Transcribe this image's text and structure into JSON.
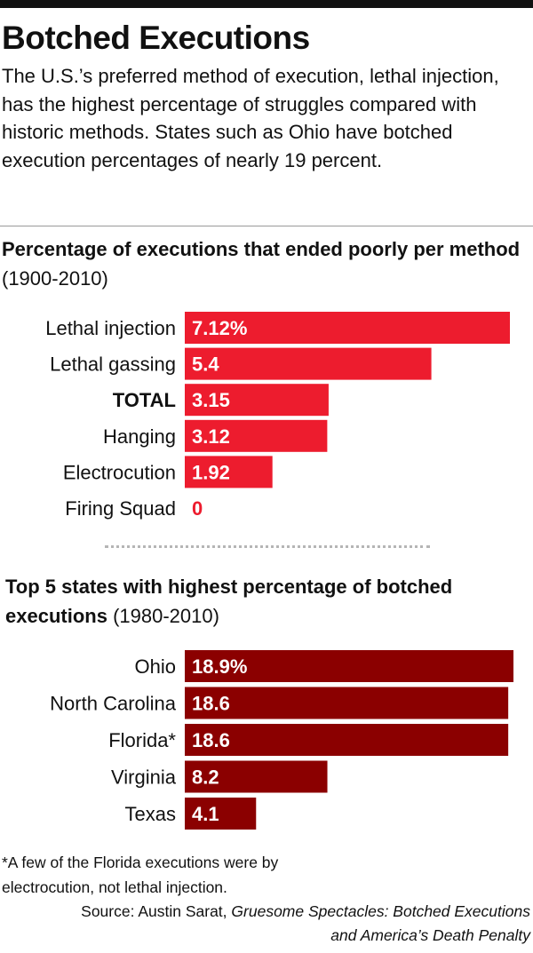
{
  "title": "Botched Executions",
  "dek": "The U.S.’s preferred method of execution, lethal injection, has the highest percentage of struggles compared with historic methods. States such as Ohio have botched execution percentages of nearly 19 percent.",
  "colors": {
    "chart1_bar": "#ed1c2e",
    "chart2_bar": "#8b0000",
    "bar_label": "#ffffff",
    "zero_label": "#ed1c2e"
  },
  "chart_data": [
    {
      "type": "bar",
      "orientation": "horizontal",
      "title_bold": "Percentage of executions that ended poorly per method",
      "title_light": "(1900-2010)",
      "categories": [
        "Lethal injection",
        "Lethal gassing",
        "TOTAL",
        "Hanging",
        "Electrocution",
        "Firing Squad"
      ],
      "values": [
        7.12,
        5.4,
        3.15,
        3.12,
        1.92,
        0
      ],
      "value_labels": [
        "7.12%",
        "5.4",
        "3.15",
        "3.12",
        "1.92",
        "0"
      ],
      "xlim": [
        0,
        7.12
      ]
    },
    {
      "type": "bar",
      "orientation": "horizontal",
      "title_bold": "Top 5 states with highest percentage of botched executions",
      "title_light": "(1980-2010)",
      "categories": [
        "Ohio",
        "North Carolina",
        "Florida*",
        "Virginia",
        "Texas"
      ],
      "values": [
        18.9,
        18.6,
        18.6,
        8.2,
        4.1
      ],
      "value_labels": [
        "18.9%",
        "18.6",
        "18.6",
        "8.2",
        "4.1"
      ],
      "xlim": [
        0,
        18.9
      ]
    }
  ],
  "footnote": "*A few of the Florida executions were by electrocution, not lethal injection.",
  "source": {
    "prefix": "Source: Austin Sarat,",
    "italic": "Gruesome Spectacles: Botched Executions and America’s Death Penalty"
  }
}
